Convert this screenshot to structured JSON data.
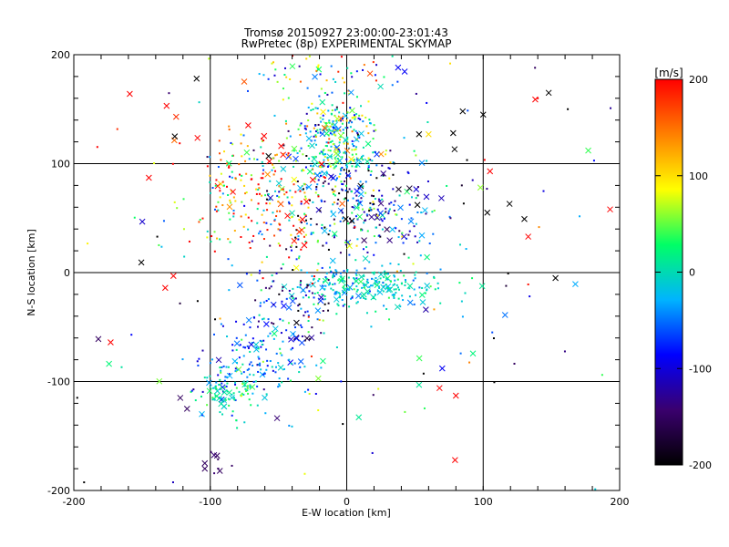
{
  "chart_data": {
    "type": "scatter",
    "title": "Tromsø 20150927 23:00:00-23:01:43",
    "subtitle": "RwPretec (8p) EXPERIMENTAL SKYMAP",
    "xlabel": "E-W location [km]",
    "ylabel": "N-S location [km]",
    "xlim": [
      -200,
      200
    ],
    "ylim": [
      -200,
      200
    ],
    "xticks": [
      -200,
      -100,
      0,
      100,
      200
    ],
    "yticks": [
      -200,
      -100,
      0,
      100,
      200
    ],
    "grid": true,
    "colorbar": {
      "label": "[m/s]",
      "range": [
        -200,
        200
      ],
      "ticks": [
        200,
        100,
        0,
        -100,
        -200
      ],
      "colormap": [
        "#000000",
        "#3a006e",
        "#0000ff",
        "#00b4ff",
        "#00ff66",
        "#ffff00",
        "#ff8000",
        "#ff0000"
      ]
    },
    "clusters": [
      {
        "cx": -10,
        "cy": 135,
        "sx": 14,
        "sy": 10,
        "n": 140,
        "v": 0,
        "vs": 70
      },
      {
        "cx": -5,
        "cy": 105,
        "sx": 16,
        "sy": 10,
        "n": 150,
        "v": 5,
        "vs": 55
      },
      {
        "cx": 15,
        "cy": 60,
        "sx": 26,
        "sy": 22,
        "n": 260,
        "v": -80,
        "vs": 90
      },
      {
        "cx": -65,
        "cy": 80,
        "sx": 28,
        "sy": 28,
        "n": 220,
        "v": 100,
        "vs": 110
      },
      {
        "cx": 15,
        "cy": -12,
        "sx": 28,
        "sy": 9,
        "n": 240,
        "v": -10,
        "vs": 25
      },
      {
        "cx": -45,
        "cy": -30,
        "sx": 18,
        "sy": 22,
        "n": 90,
        "v": -120,
        "vs": 70
      },
      {
        "cx": -65,
        "cy": -85,
        "sx": 22,
        "sy": 22,
        "n": 160,
        "v": -40,
        "vs": 40
      },
      {
        "cx": -85,
        "cy": -110,
        "sx": 12,
        "sy": 10,
        "n": 80,
        "v": 10,
        "vs": 30
      },
      {
        "cx": -10,
        "cy": 180,
        "sx": 30,
        "sy": 14,
        "n": 70,
        "v": 30,
        "vs": 90
      },
      {
        "cx": -40,
        "cy": 40,
        "sx": 30,
        "sy": 30,
        "n": 90,
        "v": 20,
        "vs": 140
      },
      {
        "cx": 0,
        "cy": 0,
        "sx": 120,
        "sy": 120,
        "n": 170,
        "v": 0,
        "vs": 150
      },
      {
        "cx": -95,
        "cy": -175,
        "sx": 6,
        "sy": 8,
        "n": 6,
        "v": -150,
        "vs": 15
      }
    ],
    "points": [
      {
        "x": -110,
        "y": 178,
        "v": -200,
        "m": "x"
      },
      {
        "x": -132,
        "y": 153,
        "v": 200,
        "m": "x"
      },
      {
        "x": -125,
        "y": 143,
        "v": 180,
        "m": "x"
      },
      {
        "x": -159,
        "y": 164,
        "v": 200,
        "m": "x"
      },
      {
        "x": -145,
        "y": 87,
        "v": 200,
        "m": "x"
      },
      {
        "x": -126,
        "y": 125,
        "v": -200,
        "m": "x"
      },
      {
        "x": -182,
        "y": -61,
        "v": -150,
        "m": "x"
      },
      {
        "x": -173,
        "y": -64,
        "v": 200,
        "m": "x"
      },
      {
        "x": -127,
        "y": -3,
        "v": 200,
        "m": "x"
      },
      {
        "x": -133,
        "y": -14,
        "v": 200,
        "m": "x"
      },
      {
        "x": -122,
        "y": -115,
        "v": -150,
        "m": "x"
      },
      {
        "x": -117,
        "y": -125,
        "v": -150,
        "m": "x"
      },
      {
        "x": -95,
        "y": -168,
        "v": -150,
        "m": "x"
      },
      {
        "x": -104,
        "y": -175,
        "v": -150,
        "m": "x"
      },
      {
        "x": -104,
        "y": -180,
        "v": -150,
        "m": "x"
      },
      {
        "x": -93,
        "y": -182,
        "v": -150,
        "m": "x"
      },
      {
        "x": 148,
        "y": 165,
        "v": -200,
        "m": "x"
      },
      {
        "x": 100,
        "y": 145,
        "v": -200,
        "m": "x"
      },
      {
        "x": 78,
        "y": 128,
        "v": -200,
        "m": "x"
      },
      {
        "x": 153,
        "y": -5,
        "v": -200,
        "m": "x"
      },
      {
        "x": 103,
        "y": 55,
        "v": -200,
        "m": "x"
      },
      {
        "x": 193,
        "y": 58,
        "v": 200,
        "m": "x"
      },
      {
        "x": 133,
        "y": 33,
        "v": 200,
        "m": "x"
      },
      {
        "x": 177,
        "y": 112,
        "v": 40,
        "m": "x"
      },
      {
        "x": 98,
        "y": 78,
        "v": 60,
        "m": "x"
      },
      {
        "x": 68,
        "y": -106,
        "v": 200,
        "m": "x"
      },
      {
        "x": 80,
        "y": -113,
        "v": 200,
        "m": "x"
      },
      {
        "x": 70,
        "y": -88,
        "v": -90,
        "m": "x"
      },
      {
        "x": 53,
        "y": -103,
        "v": 10,
        "m": "x"
      },
      {
        "x": 58,
        "y": -34,
        "v": -120,
        "m": "x"
      },
      {
        "x": 60,
        "y": 127,
        "v": 100,
        "m": "x"
      },
      {
        "x": 53,
        "y": 127,
        "v": -200,
        "m": "x"
      },
      {
        "x": 85,
        "y": 148,
        "v": -200,
        "m": "x"
      },
      {
        "x": 105,
        "y": 93,
        "v": 200,
        "m": "x"
      },
      {
        "x": 140,
        "y": 160,
        "v": 200,
        "m": "."
      },
      {
        "x": 138,
        "y": 188,
        "v": -150,
        "m": "."
      },
      {
        "x": 162,
        "y": 150,
        "v": -200,
        "m": "."
      }
    ]
  }
}
